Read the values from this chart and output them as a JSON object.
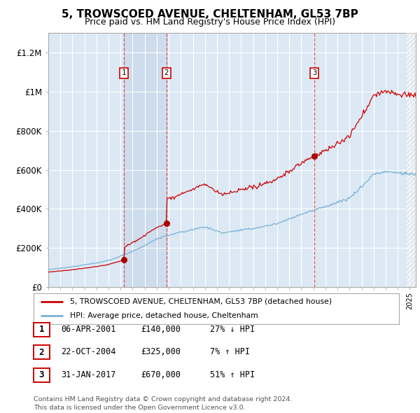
{
  "title": "5, TROWSCOED AVENUE, CHELTENHAM, GL53 7BP",
  "subtitle": "Price paid vs. HM Land Registry's House Price Index (HPI)",
  "ylim": [
    0,
    1300000
  ],
  "yticks": [
    0,
    200000,
    400000,
    600000,
    800000,
    1000000,
    1200000
  ],
  "ytick_labels": [
    "£0",
    "£200K",
    "£400K",
    "£600K",
    "£800K",
    "£1M",
    "£1.2M"
  ],
  "background_color": "#ffffff",
  "plot_bg_color": "#dce9f5",
  "grid_color": "#ffffff",
  "red_line_color": "#cc0000",
  "blue_line_color": "#7ab0d4",
  "sale_marker_color": "#aa0000",
  "vline_color": "#e05050",
  "shade_color": "#c8d8eb",
  "sale_dates": [
    2001.27,
    2004.81,
    2017.08
  ],
  "sale_prices": [
    140000,
    325000,
    670000
  ],
  "sale_labels": [
    "1",
    "2",
    "3"
  ],
  "legend_entries": [
    "5, TROWSCOED AVENUE, CHELTENHAM, GL53 7BP (detached house)",
    "HPI: Average price, detached house, Cheltenham"
  ],
  "table_rows": [
    {
      "num": "1",
      "date": "06-APR-2001",
      "price": "£140,000",
      "hpi": "27% ↓ HPI"
    },
    {
      "num": "2",
      "date": "22-OCT-2004",
      "price": "£325,000",
      "hpi": "7% ↑ HPI"
    },
    {
      "num": "3",
      "date": "31-JAN-2017",
      "price": "£670,000",
      "hpi": "51% ↑ HPI"
    }
  ],
  "footer": "Contains HM Land Registry data © Crown copyright and database right 2024.\nThis data is licensed under the Open Government Licence v3.0.",
  "xmin": 1995.0,
  "xmax": 2025.5
}
